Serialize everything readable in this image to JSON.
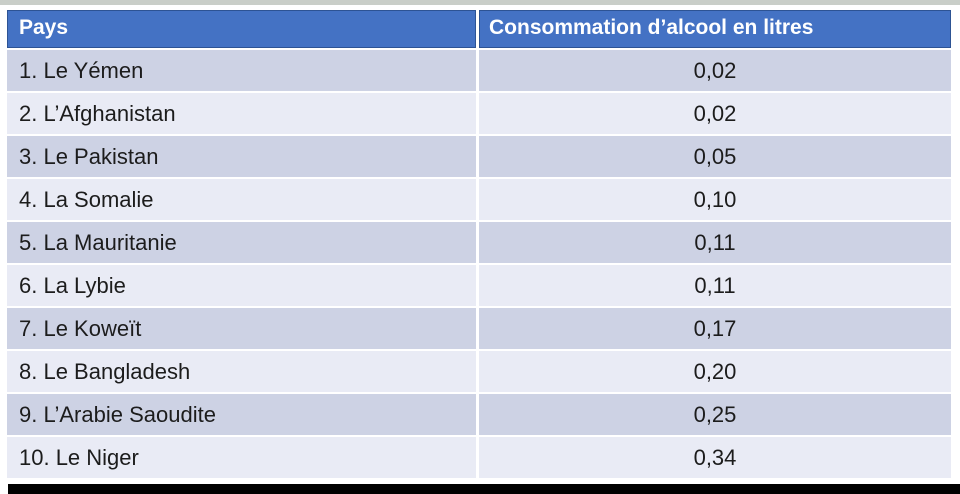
{
  "page": {
    "background": "#ffffff",
    "top_strip_color": "#c9cec8",
    "bottom_bar_color": "#000000"
  },
  "table": {
    "header": {
      "pays_label": "Pays",
      "consommation_label": "Consommation d’alcool en litres"
    },
    "colors": {
      "header_bg": "#4472c4",
      "header_text": "#ffffff",
      "row_band_dark": "#cdd2e4",
      "row_band_light": "#e9ebf5",
      "body_text": "#1c1c1c"
    },
    "rows": [
      {
        "pays": "1. Le Yémen",
        "valeur": "0,02"
      },
      {
        "pays": "2. L’Afghanistan",
        "valeur": "0,02"
      },
      {
        "pays": "3. Le Pakistan",
        "valeur": "0,05"
      },
      {
        "pays": "4. La Somalie",
        "valeur": "0,10"
      },
      {
        "pays": "5. La Mauritanie",
        "valeur": "0,11"
      },
      {
        "pays": "6. La Lybie",
        "valeur": "0,11"
      },
      {
        "pays": "7. Le Koweït",
        "valeur": "0,17"
      },
      {
        "pays": "8. Le Bangladesh",
        "valeur": "0,20"
      },
      {
        "pays": "9. L’Arabie Saoudite",
        "valeur": "0,25"
      },
      {
        "pays": "10. Le Niger",
        "valeur": "0,34"
      }
    ]
  },
  "chart_data": {
    "type": "table",
    "columns": [
      "Pays",
      "Consommation d’alcool en litres"
    ],
    "categories": [
      "Le Yémen",
      "L’Afghanistan",
      "Le Pakistan",
      "La Somalie",
      "La Mauritanie",
      "La Lybie",
      "Le Koweït",
      "Le Bangladesh",
      "L’Arabie Saoudite",
      "Le Niger"
    ],
    "values": [
      0.02,
      0.02,
      0.05,
      0.1,
      0.11,
      0.11,
      0.17,
      0.2,
      0.25,
      0.34
    ],
    "unit": "litres",
    "notes": "Ranked list 1-10 of countries by lowest alcohol consumption in litres; decimal comma formatting as displayed"
  }
}
